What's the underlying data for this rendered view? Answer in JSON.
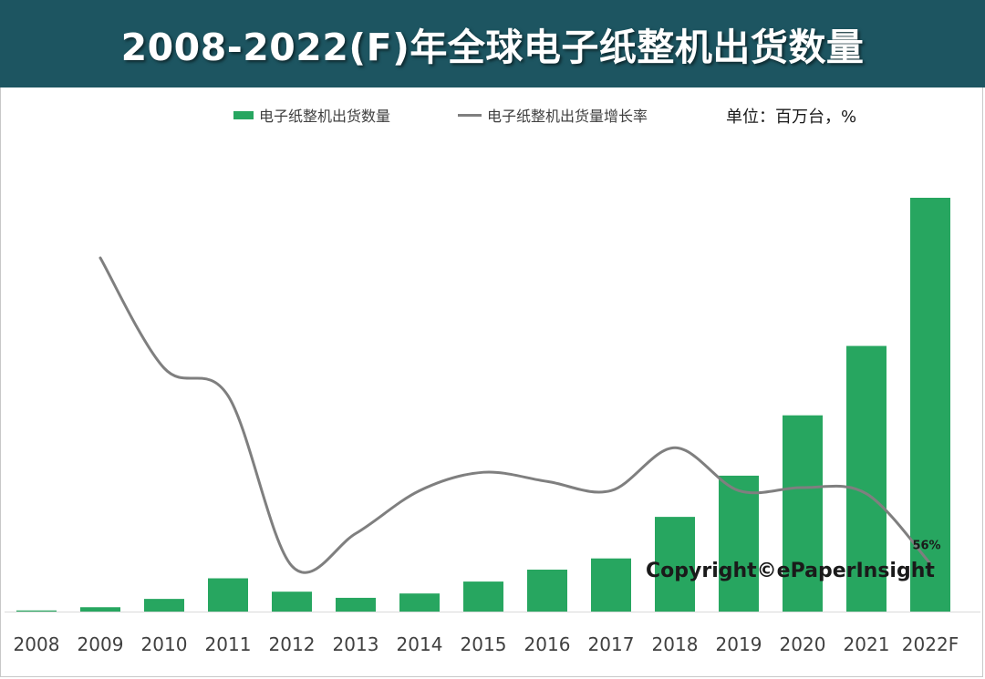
{
  "title": "2008-2022(F)年全球电子纸整机出货数量",
  "unit_text": "单位：百万台，%",
  "copyright": "Copyright©ePaperInsight",
  "colors": {
    "header_bg": "#1d5561",
    "bar": "#27a660",
    "line": "#7f7f7f"
  },
  "chart_data": {
    "type": "bar",
    "categories": [
      "2008",
      "2009",
      "2010",
      "2011",
      "2012",
      "2013",
      "2014",
      "2015",
      "2016",
      "2017",
      "2018",
      "2019",
      "2020",
      "2021",
      "2022F"
    ],
    "series": [
      {
        "name": "电子纸整机出货数量",
        "type": "bar",
        "values": [
          0.3,
          1.2,
          3.5,
          9.2,
          5.5,
          3.8,
          5.0,
          8.3,
          11.6,
          14.7,
          26.2,
          37.6,
          54.3,
          73.5,
          114.5
        ]
      },
      {
        "name": "电子纸整机出货量增长率",
        "type": "line",
        "values": [
          null,
          555,
          375,
          330,
          52,
          105,
          175,
          205,
          190,
          175,
          245,
          175,
          180,
          170,
          56
        ],
        "labels": {
          "2022F": "56%"
        }
      }
    ],
    "xlabel": "",
    "ylabel": "",
    "legend_position": "top",
    "grid": false
  }
}
